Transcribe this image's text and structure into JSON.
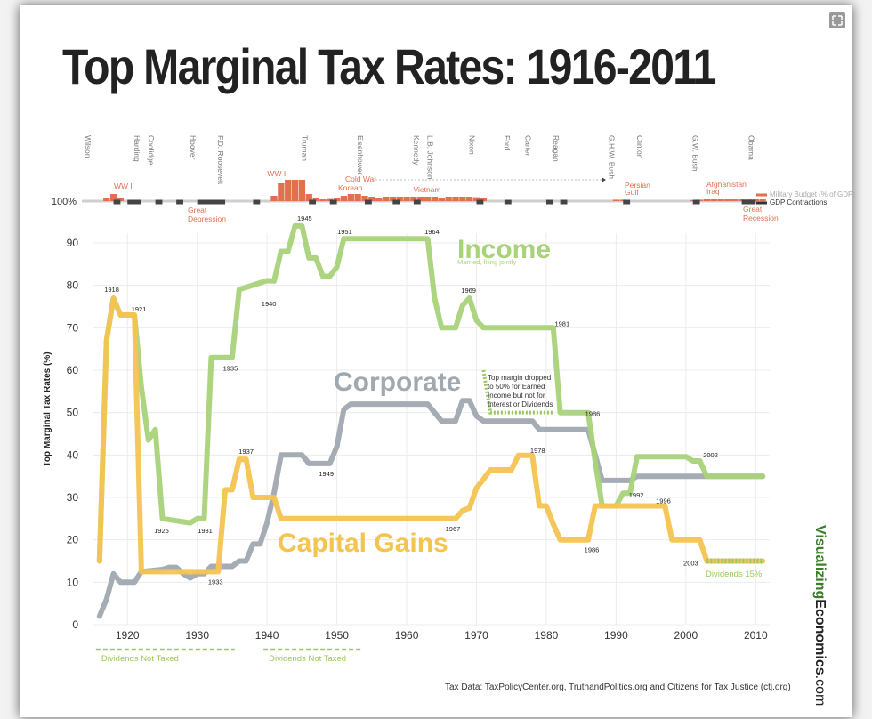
{
  "page": {
    "title": "Top Marginal Tax Rates: 1916-2011",
    "source": "Tax Data:  TaxPolicyCenter.org, TruthandPolitics.org and Citizens for Tax Justice (ctj.org)",
    "brand": {
      "a": "Visualizing",
      "b": "Economics",
      "c": ".com"
    }
  },
  "chart_data": {
    "type": "line",
    "title": "Top Marginal Tax Rates: 1916-2011",
    "ylabel": "Top Marginal Tax Rates (%)",
    "xlabel": "",
    "xlim": [
      1915,
      2012
    ],
    "ylim": [
      0,
      95
    ],
    "x_ticks": [
      1920,
      1930,
      1940,
      1950,
      1960,
      1970,
      1980,
      1990,
      2000,
      2010
    ],
    "y_ticks": [
      0,
      10,
      20,
      30,
      40,
      50,
      60,
      70,
      80,
      90
    ],
    "series": [
      {
        "name": "Income",
        "subtitle": "Married, filing jointly",
        "color": "#a9d37a",
        "points": [
          [
            1916,
            15
          ],
          [
            1917,
            67
          ],
          [
            1918,
            77
          ],
          [
            1919,
            73
          ],
          [
            1921,
            73
          ],
          [
            1922,
            56
          ],
          [
            1923,
            43.5
          ],
          [
            1924,
            46
          ],
          [
            1925,
            25
          ],
          [
            1929,
            24
          ],
          [
            1930,
            25
          ],
          [
            1931,
            25
          ],
          [
            1932,
            63
          ],
          [
            1935,
            63
          ],
          [
            1936,
            79
          ],
          [
            1940,
            81.1
          ],
          [
            1941,
            81
          ],
          [
            1942,
            88
          ],
          [
            1943,
            88
          ],
          [
            1944,
            94
          ],
          [
            1945,
            94
          ],
          [
            1946,
            86.45
          ],
          [
            1947,
            86.45
          ],
          [
            1948,
            82.13
          ],
          [
            1949,
            82.13
          ],
          [
            1950,
            84.36
          ],
          [
            1951,
            91
          ],
          [
            1963,
            91
          ],
          [
            1964,
            77
          ],
          [
            1965,
            70
          ],
          [
            1967,
            70
          ],
          [
            1968,
            75.25
          ],
          [
            1969,
            77
          ],
          [
            1970,
            71.75
          ],
          [
            1971,
            70
          ],
          [
            1981,
            70
          ],
          [
            1982,
            50
          ],
          [
            1986,
            50
          ],
          [
            1987,
            38.5
          ],
          [
            1988,
            28
          ],
          [
            1990,
            28
          ],
          [
            1991,
            31
          ],
          [
            1992,
            31
          ],
          [
            1993,
            39.6
          ],
          [
            2000,
            39.6
          ],
          [
            2001,
            38.6
          ],
          [
            2002,
            38.6
          ],
          [
            2003,
            35
          ],
          [
            2011,
            35
          ]
        ]
      },
      {
        "name": "Corporate",
        "color": "#a0a8b0",
        "points": [
          [
            1916,
            2
          ],
          [
            1917,
            6
          ],
          [
            1918,
            12
          ],
          [
            1919,
            10
          ],
          [
            1921,
            10
          ],
          [
            1922,
            12.5
          ],
          [
            1925,
            13
          ],
          [
            1926,
            13.5
          ],
          [
            1927,
            13.5
          ],
          [
            1928,
            12
          ],
          [
            1929,
            11
          ],
          [
            1930,
            12
          ],
          [
            1931,
            12
          ],
          [
            1932,
            13.75
          ],
          [
            1935,
            13.75
          ],
          [
            1936,
            15
          ],
          [
            1937,
            15
          ],
          [
            1938,
            19
          ],
          [
            1939,
            19
          ],
          [
            1940,
            24
          ],
          [
            1941,
            31
          ],
          [
            1942,
            40
          ],
          [
            1945,
            40
          ],
          [
            1946,
            38
          ],
          [
            1949,
            38
          ],
          [
            1950,
            42
          ],
          [
            1951,
            50.75
          ],
          [
            1952,
            52
          ],
          [
            1963,
            52
          ],
          [
            1964,
            50
          ],
          [
            1965,
            48
          ],
          [
            1967,
            48
          ],
          [
            1968,
            52.8
          ],
          [
            1969,
            52.8
          ],
          [
            1970,
            49.2
          ],
          [
            1971,
            48
          ],
          [
            1978,
            48
          ],
          [
            1979,
            46
          ],
          [
            1986,
            46
          ],
          [
            1987,
            40
          ],
          [
            1988,
            34
          ],
          [
            1992,
            34
          ],
          [
            1993,
            35
          ],
          [
            2011,
            35
          ]
        ]
      },
      {
        "name": "Capital Gains",
        "color": "#f4c451",
        "points": [
          [
            1916,
            15
          ],
          [
            1917,
            67
          ],
          [
            1918,
            77
          ],
          [
            1919,
            73
          ],
          [
            1921,
            73
          ],
          [
            1922,
            12.5
          ],
          [
            1933,
            12.5
          ],
          [
            1934,
            31.8
          ],
          [
            1935,
            31.8
          ],
          [
            1936,
            39
          ],
          [
            1937,
            39
          ],
          [
            1938,
            30
          ],
          [
            1941,
            30
          ],
          [
            1942,
            25
          ],
          [
            1967,
            25
          ],
          [
            1968,
            26.9
          ],
          [
            1969,
            27.5
          ],
          [
            1970,
            32.2
          ],
          [
            1971,
            34.3
          ],
          [
            1972,
            36.5
          ],
          [
            1975,
            36.5
          ],
          [
            1976,
            39.9
          ],
          [
            1977,
            39.9
          ],
          [
            1978,
            39.9
          ],
          [
            1979,
            28
          ],
          [
            1980,
            28
          ],
          [
            1981,
            23.7
          ],
          [
            1982,
            20
          ],
          [
            1986,
            20
          ],
          [
            1987,
            28
          ],
          [
            1997,
            28
          ],
          [
            1998,
            20
          ],
          [
            2002,
            20
          ],
          [
            2003,
            15
          ],
          [
            2011,
            15
          ]
        ]
      },
      {
        "name": "Dividends 15%",
        "color": "#9cc75e",
        "style": "dashed",
        "points": [
          [
            2003,
            15
          ],
          [
            2011,
            15
          ]
        ]
      },
      {
        "name": "Top margin dropped to 50% for Earned Income but not for Interest or Dividends",
        "color": "#9cc75e",
        "style": "dashed",
        "points": [
          [
            1971,
            60
          ],
          [
            1972,
            50
          ],
          [
            1981,
            50
          ]
        ]
      }
    ],
    "bottom_labels": [
      {
        "text": "Dividends Not Taxed",
        "x_start": 1916,
        "x_end": 1935
      },
      {
        "text": "Dividends Not Taxed",
        "x_start": 1940,
        "x_end": 1953
      }
    ],
    "point_labels": [
      {
        "year": "1918",
        "x": 1918,
        "y": 77
      },
      {
        "year": "1921",
        "x": 1921,
        "y": 73
      },
      {
        "year": "1925",
        "x": 1925,
        "y": 25
      },
      {
        "year": "1931",
        "x": 1931,
        "y": 25
      },
      {
        "year": "1933",
        "x": 1933,
        "y": 12.5
      },
      {
        "year": "1935",
        "x": 1935,
        "y": 63
      },
      {
        "year": "1937",
        "x": 1937,
        "y": 39
      },
      {
        "year": "1940",
        "x": 1940,
        "y": 78
      },
      {
        "year": "1945",
        "x": 1945,
        "y": 94
      },
      {
        "year": "1949",
        "x": 1949,
        "y": 38
      },
      {
        "year": "1951",
        "x": 1951,
        "y": 91
      },
      {
        "year": "1964",
        "x": 1964,
        "y": 91
      },
      {
        "year": "1967",
        "x": 1967,
        "y": 25
      },
      {
        "year": "1969",
        "x": 1969,
        "y": 77
      },
      {
        "year": "1978",
        "x": 1978,
        "y": 39.9
      },
      {
        "year": "1981",
        "x": 1981,
        "y": 70
      },
      {
        "year": "1986",
        "x": 1986,
        "y": 50
      },
      {
        "year": "1986",
        "x": 1986,
        "y": 20
      },
      {
        "year": "1992",
        "x": 1992,
        "y": 31
      },
      {
        "year": "1996",
        "x": 1996,
        "y": 28
      },
      {
        "year": "2002",
        "x": 2002,
        "y": 38.6
      },
      {
        "year": "2003",
        "x": 2003,
        "y": 15
      }
    ],
    "timeline": {
      "baseline_label": "100%",
      "presidents": [
        {
          "name": "Wilson",
          "year": 1913
        },
        {
          "name": "Harding",
          "year": 1921
        },
        {
          "name": "Coolidge",
          "year": 1923
        },
        {
          "name": "Hoover",
          "year": 1929
        },
        {
          "name": "F.D. Roosevelt",
          "year": 1933
        },
        {
          "name": "Truman",
          "year": 1945
        },
        {
          "name": "Eisenhower",
          "year": 1953
        },
        {
          "name": "Kennedy",
          "year": 1961
        },
        {
          "name": "L.B. Johnson",
          "year": 1963
        },
        {
          "name": "Nixon",
          "year": 1969
        },
        {
          "name": "Ford",
          "year": 1974
        },
        {
          "name": "Carter",
          "year": 1977
        },
        {
          "name": "Reagan",
          "year": 1981
        },
        {
          "name": "G.H.W. Bush",
          "year": 1989
        },
        {
          "name": "Clinton",
          "year": 1993
        },
        {
          "name": "G.W. Bush",
          "year": 2001
        },
        {
          "name": "Obama",
          "year": 2009
        }
      ],
      "events": [
        {
          "text": "WW I",
          "year": 1917
        },
        {
          "text": "WW II",
          "year": 1942
        },
        {
          "text": "Cold War",
          "year": 1951
        },
        {
          "text": "Korean",
          "year": 1950
        },
        {
          "text": "Vietnam",
          "year": 1964
        },
        {
          "text": "Great",
          "year": 1929
        },
        {
          "text": "Depression",
          "year": 1929
        },
        {
          "text": "Persian",
          "year": 1990
        },
        {
          "text": "Gulf",
          "year": 1990
        },
        {
          "text": "Afghanistan",
          "year": 2001
        },
        {
          "text": "Iraq",
          "year": 2003
        },
        {
          "text": "Great",
          "year": 2008
        },
        {
          "text": "Recession",
          "year": 2008
        }
      ],
      "military_bars": [
        [
          1917,
          2
        ],
        [
          1918,
          4
        ],
        [
          1919,
          1.5
        ],
        [
          1941,
          3
        ],
        [
          1942,
          10
        ],
        [
          1943,
          12
        ],
        [
          1944,
          12
        ],
        [
          1945,
          12
        ],
        [
          1946,
          4
        ],
        [
          1947,
          1.5
        ],
        [
          1948,
          1
        ],
        [
          1949,
          1.2
        ],
        [
          1950,
          1.5
        ],
        [
          1951,
          3
        ],
        [
          1952,
          4
        ],
        [
          1953,
          4
        ],
        [
          1954,
          3
        ],
        [
          1955,
          2.5
        ],
        [
          1956,
          2
        ],
        [
          1957,
          2.5
        ],
        [
          1958,
          2.5
        ],
        [
          1959,
          2.5
        ],
        [
          1960,
          2.5
        ],
        [
          1961,
          2.5
        ],
        [
          1962,
          2.5
        ],
        [
          1963,
          2.5
        ],
        [
          1964,
          2.5
        ],
        [
          1965,
          2
        ],
        [
          1966,
          2.5
        ],
        [
          1967,
          2.5
        ],
        [
          1968,
          2.5
        ],
        [
          1969,
          2.5
        ],
        [
          1970,
          2.2
        ],
        [
          1971,
          2
        ],
        [
          1990,
          0.8
        ],
        [
          1991,
          0.8
        ],
        [
          2001,
          0.6
        ],
        [
          2002,
          0.8
        ],
        [
          2003,
          1
        ],
        [
          2004,
          1
        ],
        [
          2005,
          1
        ],
        [
          2006,
          1
        ],
        [
          2007,
          1
        ],
        [
          2008,
          1
        ],
        [
          2009,
          1
        ],
        [
          2010,
          1
        ],
        [
          2011,
          1
        ]
      ],
      "gdp_contractions": [
        [
          1918,
          1919
        ],
        [
          1920,
          1922
        ],
        [
          1924,
          1925
        ],
        [
          1927,
          1928
        ],
        [
          1930,
          1934
        ],
        [
          1938,
          1939
        ],
        [
          1946,
          1947
        ],
        [
          1949,
          1950
        ],
        [
          1954,
          1955
        ],
        [
          1958,
          1959
        ],
        [
          1961,
          1962
        ],
        [
          1970,
          1971
        ],
        [
          1974,
          1975
        ],
        [
          1980,
          1981
        ],
        [
          1982,
          1983
        ],
        [
          1991,
          1992
        ],
        [
          2001,
          2002
        ],
        [
          2008,
          2010
        ]
      ],
      "legend_military": "Military Budget (% of GDP)",
      "legend_gdp": "GDP Contractions"
    },
    "annotations": {
      "income_label": "Income",
      "income_sub": "Married, filing jointly",
      "corporate_label": "Corporate",
      "capgains_label": "Capital Gains",
      "dividends_label": "Dividends 15%",
      "note_lines": [
        "Top margin dropped",
        "to 50% for Earned",
        "Income but not for",
        "Interest or Dividends"
      ]
    }
  }
}
